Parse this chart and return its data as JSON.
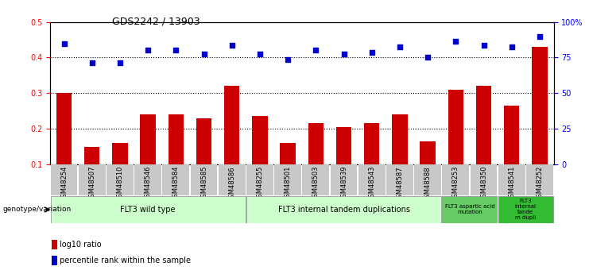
{
  "title": "GDS2242 / 13903",
  "samples": [
    "GSM48254",
    "GSM48507",
    "GSM48510",
    "GSM48546",
    "GSM48584",
    "GSM48585",
    "GSM48586",
    "GSM48255",
    "GSM48501",
    "GSM48503",
    "GSM48539",
    "GSM48543",
    "GSM48587",
    "GSM48588",
    "GSM48253",
    "GSM48350",
    "GSM48541",
    "GSM48252"
  ],
  "log10_ratio": [
    0.3,
    0.15,
    0.16,
    0.24,
    0.24,
    0.23,
    0.32,
    0.235,
    0.16,
    0.215,
    0.205,
    0.215,
    0.24,
    0.165,
    0.31,
    0.32,
    0.265,
    0.43
  ],
  "percentile_rank_left": [
    0.44,
    0.385,
    0.385,
    0.42,
    0.42,
    0.41,
    0.435,
    0.41,
    0.395,
    0.42,
    0.41,
    0.415,
    0.43,
    0.4,
    0.445,
    0.435,
    0.43,
    0.46
  ],
  "bar_color": "#cc0000",
  "dot_color": "#0000cc",
  "ylim_left": [
    0.1,
    0.5
  ],
  "yticks_left": [
    0.1,
    0.2,
    0.3,
    0.4,
    0.5
  ],
  "yticks_right": [
    0,
    25,
    50,
    75,
    100
  ],
  "ytick_labels_right": [
    "0",
    "25",
    "50",
    "75",
    "100%"
  ],
  "hlines": [
    0.2,
    0.3,
    0.4
  ],
  "groups": [
    {
      "label": "FLT3 wild type",
      "start": 0,
      "end": 6,
      "color": "#ccffcc"
    },
    {
      "label": "FLT3 internal tandem duplications",
      "start": 7,
      "end": 13,
      "color": "#ccffcc"
    },
    {
      "label": "FLT3 aspartic acid\nmutation",
      "start": 14,
      "end": 15,
      "color": "#66cc66"
    },
    {
      "label": "FLT3\ninternal\ntande\nm dupli",
      "start": 16,
      "end": 17,
      "color": "#33bb33"
    }
  ],
  "genotype_label": "genotype/variation",
  "legend_bar_label": "log10 ratio",
  "legend_dot_label": "percentile rank within the sample",
  "background_color": "#ffffff",
  "tick_bg_color": "#c8c8c8"
}
